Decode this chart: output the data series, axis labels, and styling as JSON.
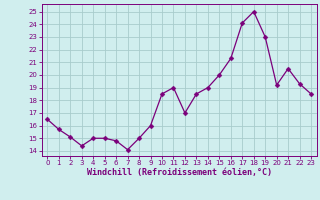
{
  "x": [
    0,
    1,
    2,
    3,
    4,
    5,
    6,
    7,
    8,
    9,
    10,
    11,
    12,
    13,
    14,
    15,
    16,
    17,
    18,
    19,
    20,
    21,
    22,
    23
  ],
  "y": [
    16.5,
    15.7,
    15.1,
    14.4,
    15.0,
    15.0,
    14.8,
    14.1,
    15.0,
    16.0,
    18.5,
    19.0,
    17.0,
    18.5,
    19.0,
    20.0,
    21.3,
    24.1,
    25.0,
    23.0,
    19.2,
    20.5,
    19.3,
    18.5
  ],
  "line_color": "#7b007b",
  "marker": "D",
  "marker_size": 2.5,
  "bg_color": "#d0eeee",
  "grid_color": "#a8cccc",
  "xlabel": "Windchill (Refroidissement éolien,°C)",
  "ylabel_ticks": [
    14,
    15,
    16,
    17,
    18,
    19,
    20,
    21,
    22,
    23,
    24,
    25
  ],
  "xlim": [
    -0.5,
    23.5
  ],
  "ylim": [
    13.6,
    25.6
  ],
  "xticks": [
    0,
    1,
    2,
    3,
    4,
    5,
    6,
    7,
    8,
    9,
    10,
    11,
    12,
    13,
    14,
    15,
    16,
    17,
    18,
    19,
    20,
    21,
    22,
    23
  ],
  "axis_label_color": "#7b007b",
  "tick_color": "#7b007b"
}
